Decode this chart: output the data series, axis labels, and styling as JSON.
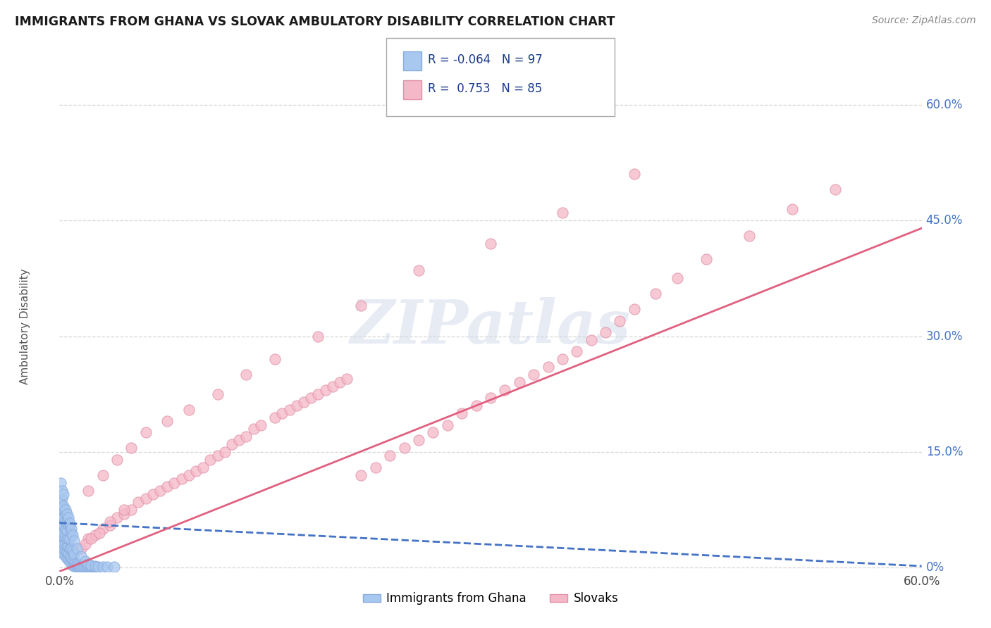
{
  "title": "IMMIGRANTS FROM GHANA VS SLOVAK AMBULATORY DISABILITY CORRELATION CHART",
  "source": "Source: ZipAtlas.com",
  "ylabel": "Ambulatory Disability",
  "legend_label1": "Immigrants from Ghana",
  "legend_label2": "Slovaks",
  "R1": -0.064,
  "N1": 97,
  "R2": 0.753,
  "N2": 85,
  "color_ghana": "#a8c8f0",
  "color_slovak": "#f5b8c8",
  "color_ghana_line": "#4472c4",
  "color_slovak_line": "#e06080",
  "watermark_text": "ZIPatlas",
  "background_color": "#ffffff",
  "grid_color": "#cccccc",
  "title_color": "#1a1a1a",
  "right_label_color": "#4472c4",
  "xlim": [
    0.0,
    0.6
  ],
  "ylim": [
    -0.005,
    0.63
  ],
  "yticks": [
    0.0,
    0.15,
    0.3,
    0.45,
    0.6
  ],
  "ytick_labels": [
    "0%",
    "15.0%",
    "30.0%",
    "45.0%",
    "60.0%"
  ],
  "xtick_vals": [
    0.0,
    0.6
  ],
  "xtick_labels": [
    "0.0%",
    "60.0%"
  ],
  "ghana_scatter_x": [
    0.001,
    0.001,
    0.001,
    0.001,
    0.001,
    0.002,
    0.002,
    0.002,
    0.002,
    0.002,
    0.002,
    0.002,
    0.002,
    0.002,
    0.002,
    0.003,
    0.003,
    0.003,
    0.003,
    0.003,
    0.003,
    0.003,
    0.003,
    0.004,
    0.004,
    0.004,
    0.004,
    0.004,
    0.004,
    0.004,
    0.005,
    0.005,
    0.005,
    0.005,
    0.005,
    0.005,
    0.006,
    0.006,
    0.006,
    0.006,
    0.006,
    0.007,
    0.007,
    0.007,
    0.007,
    0.007,
    0.008,
    0.008,
    0.008,
    0.008,
    0.009,
    0.009,
    0.009,
    0.01,
    0.01,
    0.01,
    0.011,
    0.011,
    0.012,
    0.012,
    0.013,
    0.013,
    0.014,
    0.015,
    0.016,
    0.017,
    0.018,
    0.019,
    0.02,
    0.021,
    0.022,
    0.023,
    0.024,
    0.025,
    0.001,
    0.001,
    0.002,
    0.002,
    0.003,
    0.003,
    0.004,
    0.005,
    0.006,
    0.007,
    0.008,
    0.009,
    0.01,
    0.012,
    0.015,
    0.018,
    0.02,
    0.022,
    0.025,
    0.027,
    0.03,
    0.033,
    0.038
  ],
  "ghana_scatter_y": [
    0.03,
    0.045,
    0.055,
    0.065,
    0.075,
    0.02,
    0.03,
    0.035,
    0.04,
    0.045,
    0.05,
    0.06,
    0.065,
    0.07,
    0.08,
    0.018,
    0.025,
    0.03,
    0.04,
    0.045,
    0.055,
    0.065,
    0.075,
    0.015,
    0.022,
    0.03,
    0.04,
    0.05,
    0.06,
    0.07,
    0.012,
    0.02,
    0.028,
    0.038,
    0.048,
    0.058,
    0.01,
    0.018,
    0.028,
    0.038,
    0.055,
    0.008,
    0.015,
    0.025,
    0.038,
    0.055,
    0.005,
    0.012,
    0.025,
    0.045,
    0.003,
    0.01,
    0.022,
    0.002,
    0.008,
    0.018,
    0.002,
    0.006,
    0.001,
    0.005,
    0.001,
    0.004,
    0.001,
    0.001,
    0.001,
    0.001,
    0.001,
    0.001,
    0.001,
    0.001,
    0.001,
    0.001,
    0.001,
    0.001,
    0.085,
    0.11,
    0.09,
    0.1,
    0.08,
    0.095,
    0.075,
    0.07,
    0.065,
    0.058,
    0.05,
    0.042,
    0.035,
    0.025,
    0.015,
    0.008,
    0.005,
    0.003,
    0.002,
    0.001,
    0.001,
    0.001,
    0.001
  ],
  "slovak_scatter_x": [
    0.02,
    0.025,
    0.03,
    0.035,
    0.04,
    0.045,
    0.05,
    0.055,
    0.06,
    0.065,
    0.07,
    0.075,
    0.08,
    0.085,
    0.09,
    0.095,
    0.1,
    0.105,
    0.11,
    0.115,
    0.12,
    0.125,
    0.13,
    0.135,
    0.14,
    0.15,
    0.155,
    0.16,
    0.165,
    0.17,
    0.175,
    0.18,
    0.185,
    0.19,
    0.195,
    0.2,
    0.21,
    0.22,
    0.23,
    0.24,
    0.25,
    0.26,
    0.27,
    0.28,
    0.29,
    0.3,
    0.31,
    0.32,
    0.33,
    0.34,
    0.35,
    0.36,
    0.37,
    0.38,
    0.39,
    0.4,
    0.415,
    0.43,
    0.45,
    0.48,
    0.51,
    0.54,
    0.02,
    0.03,
    0.04,
    0.05,
    0.06,
    0.075,
    0.09,
    0.11,
    0.13,
    0.15,
    0.18,
    0.21,
    0.25,
    0.3,
    0.35,
    0.4,
    0.01,
    0.015,
    0.018,
    0.022,
    0.028,
    0.035,
    0.045
  ],
  "slovak_scatter_y": [
    0.038,
    0.042,
    0.05,
    0.055,
    0.065,
    0.07,
    0.075,
    0.085,
    0.09,
    0.095,
    0.1,
    0.105,
    0.11,
    0.115,
    0.12,
    0.125,
    0.13,
    0.14,
    0.145,
    0.15,
    0.16,
    0.165,
    0.17,
    0.18,
    0.185,
    0.195,
    0.2,
    0.205,
    0.21,
    0.215,
    0.22,
    0.225,
    0.23,
    0.235,
    0.24,
    0.245,
    0.12,
    0.13,
    0.145,
    0.155,
    0.165,
    0.175,
    0.185,
    0.2,
    0.21,
    0.22,
    0.23,
    0.24,
    0.25,
    0.26,
    0.27,
    0.28,
    0.295,
    0.305,
    0.32,
    0.335,
    0.355,
    0.375,
    0.4,
    0.43,
    0.465,
    0.49,
    0.1,
    0.12,
    0.14,
    0.155,
    0.175,
    0.19,
    0.205,
    0.225,
    0.25,
    0.27,
    0.3,
    0.34,
    0.385,
    0.42,
    0.46,
    0.51,
    0.02,
    0.025,
    0.03,
    0.038,
    0.045,
    0.06,
    0.075
  ],
  "slovak_line_x0": 0.0,
  "slovak_line_y0": -0.005,
  "slovak_line_x1": 0.6,
  "slovak_line_y1": 0.44,
  "ghana_line_x0": 0.0,
  "ghana_line_y0": 0.058,
  "ghana_line_x1": 0.6,
  "ghana_line_y1": 0.002
}
